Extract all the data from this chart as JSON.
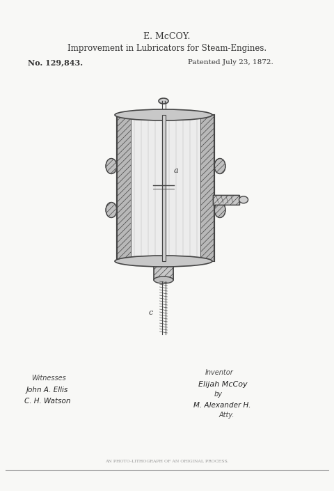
{
  "title1": "E. McCOY.",
  "title2": "Improvement in Lubricators for Steam-Engines.",
  "no_text": "No. 129,843.",
  "patent_text": "Patented July 23, 1872.",
  "witness_label": "Witnesses",
  "witness1": "John A. Ellis",
  "witness2": "C. H. Watson",
  "inventor_label": "Inventor",
  "inventor_name": "Elijah McCoy",
  "by_text": "by",
  "attorney_name": "M. Alexander H.",
  "attorney_label": "Atty.",
  "footer": "AN PHOTO-LITHOGRAPH OF AN ORIGINAL PROCESS.",
  "bg_color": "#f8f8f6",
  "drawing_color": "#444444",
  "line_color": "#333333",
  "hatch_color": "#666666"
}
